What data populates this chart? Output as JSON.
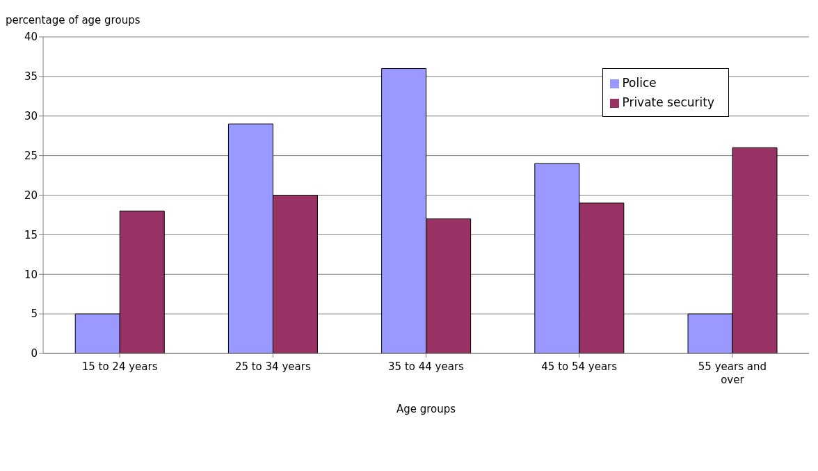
{
  "chart_data": {
    "type": "bar",
    "ylabel": "percentage of age groups",
    "xlabel": "Age groups",
    "categories": [
      "15 to 24 years",
      "25 to 34 years",
      "35 to 44 years",
      "45 to 54 years",
      "55 years and over"
    ],
    "series": [
      {
        "name": "Police",
        "color": "#9999ff",
        "values": [
          5,
          29,
          36,
          24,
          5
        ]
      },
      {
        "name": "Private security",
        "color": "#993366",
        "values": [
          18,
          20,
          17,
          19,
          26
        ]
      }
    ],
    "ylim": [
      0,
      40
    ],
    "yticks": [
      0,
      5,
      10,
      15,
      20,
      25,
      30,
      35,
      40
    ],
    "grid": "y",
    "legend": "top right"
  }
}
